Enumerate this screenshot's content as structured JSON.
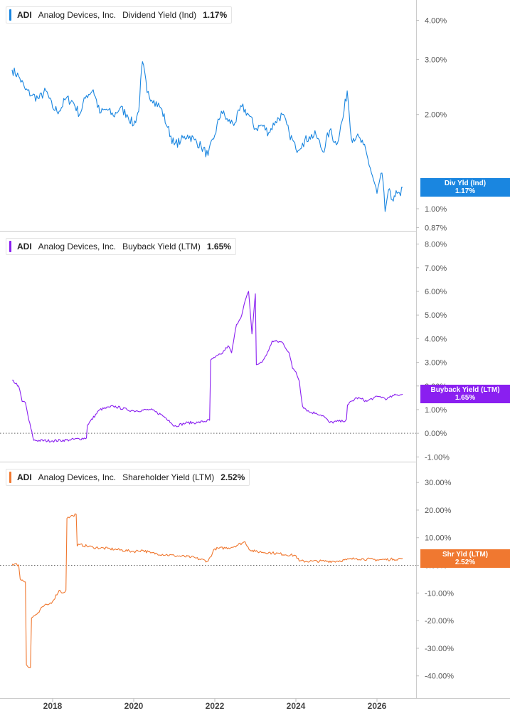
{
  "chart_data": [
    {
      "type": "line",
      "ticker": "ADI",
      "company": "Analog Devices, Inc.",
      "metric": "Dividend Yield (Ind)",
      "current": "1.17%",
      "tag_label": "Div Yld (Ind)",
      "color": "#1a86e0",
      "scale": "log",
      "ylim": [
        0.85,
        4.5
      ],
      "y_ticks": [
        {
          "v": 4.0,
          "label": "4.00%"
        },
        {
          "v": 3.0,
          "label": "3.00%"
        },
        {
          "v": 2.0,
          "label": "2.00%"
        },
        {
          "v": 1.0,
          "label": "1.00%"
        },
        {
          "v": 0.87,
          "label": "0.87%"
        }
      ],
      "series": [
        {
          "x": [
            "2017-01-01",
            "2017-03-01",
            "2017-05-01",
            "2017-07-01",
            "2017-09-01",
            "2017-11-01",
            "2018-01-01",
            "2018-03-01",
            "2018-05-01",
            "2018-07-01",
            "2018-09-01",
            "2018-11-01",
            "2019-01-01",
            "2019-03-01",
            "2019-05-01",
            "2019-07-01",
            "2019-09-01",
            "2019-11-01",
            "2020-01-01",
            "2020-02-15",
            "2020-03-20",
            "2020-05-01",
            "2020-07-01",
            "2020-09-01",
            "2020-11-01",
            "2021-01-01",
            "2021-03-01",
            "2021-05-01",
            "2021-07-01",
            "2021-09-01",
            "2021-11-01",
            "2022-01-01",
            "2022-03-01",
            "2022-05-01",
            "2022-07-01",
            "2022-09-01",
            "2022-11-01",
            "2023-01-01",
            "2023-03-01",
            "2023-05-01",
            "2023-07-01",
            "2023-09-01",
            "2023-11-01",
            "2024-01-01",
            "2024-03-01",
            "2024-05-01",
            "2024-07-01",
            "2024-09-01",
            "2024-11-01",
            "2025-01-01",
            "2025-03-01",
            "2025-04-08",
            "2025-05-15",
            "2025-07-01",
            "2025-09-01",
            "2025-11-01",
            "2026-01-01",
            "2026-02-15",
            "2026-03-15",
            "2026-04-15",
            "2026-05-10",
            "2026-06-05",
            "2026-07-01",
            "2026-08-01",
            "2026-08-20"
          ],
          "y": [
            2.78,
            2.65,
            2.4,
            2.3,
            2.25,
            2.38,
            2.1,
            2.05,
            2.25,
            2.2,
            2.0,
            2.3,
            2.4,
            2.02,
            2.08,
            1.98,
            2.1,
            2.0,
            1.85,
            2.05,
            2.95,
            2.35,
            2.22,
            2.1,
            1.82,
            1.6,
            1.65,
            1.72,
            1.66,
            1.58,
            1.48,
            1.72,
            2.05,
            1.9,
            1.88,
            2.12,
            2.0,
            1.8,
            1.85,
            1.75,
            1.9,
            2.0,
            1.75,
            1.55,
            1.62,
            1.7,
            1.72,
            1.52,
            1.78,
            1.6,
            1.95,
            2.38,
            1.68,
            1.7,
            1.6,
            1.35,
            1.12,
            1.3,
            0.98,
            1.15,
            1.07,
            1.1,
            1.12,
            1.1,
            1.17
          ]
        }
      ],
      "x_ticks": [
        "2018",
        "2020",
        "2022",
        "2024",
        "2026"
      ]
    },
    {
      "type": "line",
      "ticker": "ADI",
      "company": "Analog Devices, Inc.",
      "metric": "Buyback Yield (LTM)",
      "current": "1.65%",
      "tag_label": "Buyback Yield (LTM)",
      "color": "#8a1ff0",
      "ylim": [
        -1.2,
        8.5
      ],
      "y_ticks": [
        {
          "v": 8,
          "label": "8.00%"
        },
        {
          "v": 7,
          "label": "7.00%"
        },
        {
          "v": 6,
          "label": "6.00%"
        },
        {
          "v": 5,
          "label": "5.00%"
        },
        {
          "v": 4,
          "label": "4.00%"
        },
        {
          "v": 3,
          "label": "3.00%"
        },
        {
          "v": 2,
          "label": "2.00%"
        },
        {
          "v": 1,
          "label": "1.00%"
        },
        {
          "v": 0,
          "label": "0.00%"
        },
        {
          "v": -1,
          "label": "-1.00%"
        }
      ],
      "series": [
        {
          "x": [
            "2017-01-01",
            "2017-03-01",
            "2017-04-01",
            "2017-05-01",
            "2017-06-01",
            "2017-07-15",
            "2018-01-01",
            "2018-06-01",
            "2018-11-01",
            "2018-11-10",
            "2019-03-01",
            "2019-06-01",
            "2019-07-01",
            "2019-11-01",
            "2020-01-01",
            "2020-06-01",
            "2020-09-01",
            "2020-11-15",
            "2021-01-01",
            "2021-05-01",
            "2021-08-01",
            "2021-11-15",
            "2021-11-25",
            "2022-01-01",
            "2022-03-01",
            "2022-05-01",
            "2022-06-01",
            "2022-07-15",
            "2022-09-01",
            "2022-10-01",
            "2022-11-01",
            "2022-12-01",
            "2023-01-01",
            "2023-01-10",
            "2023-03-01",
            "2023-05-01",
            "2023-06-01",
            "2023-09-01",
            "2023-11-01",
            "2023-12-01",
            "2024-01-01",
            "2024-02-01",
            "2024-03-01",
            "2024-05-01",
            "2024-07-01",
            "2024-09-01",
            "2024-11-01",
            "2025-01-01",
            "2025-03-01",
            "2025-04-01",
            "2025-04-10",
            "2025-07-01",
            "2025-08-15",
            "2025-10-01",
            "2025-12-01",
            "2026-02-01",
            "2026-04-01",
            "2026-06-01",
            "2026-08-20"
          ],
          "y": [
            2.25,
            2.0,
            1.35,
            1.3,
            0.55,
            -0.3,
            -0.32,
            -0.28,
            -0.2,
            0.35,
            1.0,
            1.1,
            1.15,
            1.0,
            0.95,
            1.0,
            0.8,
            0.55,
            0.3,
            0.45,
            0.45,
            0.55,
            3.1,
            3.2,
            3.35,
            3.7,
            3.4,
            4.6,
            5.0,
            5.6,
            6.0,
            4.2,
            5.9,
            2.9,
            3.0,
            3.5,
            3.9,
            3.85,
            3.4,
            2.75,
            2.6,
            2.2,
            1.15,
            0.9,
            0.85,
            0.75,
            0.45,
            0.5,
            0.5,
            0.6,
            1.2,
            1.5,
            1.45,
            1.35,
            1.5,
            1.55,
            1.45,
            1.6,
            1.65
          ]
        }
      ],
      "x_ticks": [
        "2018",
        "2020",
        "2022",
        "2024",
        "2026"
      ]
    },
    {
      "type": "line",
      "ticker": "ADI",
      "company": "Analog Devices, Inc.",
      "metric": "Shareholder Yield (LTM)",
      "current": "2.52%",
      "tag_label": "Shr Yld (LTM)",
      "color": "#f07830",
      "ylim": [
        -46,
        37
      ],
      "y_ticks": [
        {
          "v": 30,
          "label": "30.00%"
        },
        {
          "v": 20,
          "label": "20.00%"
        },
        {
          "v": 10,
          "label": "10.00%"
        },
        {
          "v": 0,
          "label": "0.00%"
        },
        {
          "v": -10,
          "label": "-10.00%"
        },
        {
          "v": -20,
          "label": "-20.00%"
        },
        {
          "v": -30,
          "label": "-30.00%"
        },
        {
          "v": -40,
          "label": "-40.00%"
        }
      ],
      "series": [
        {
          "x": [
            "2017-01-01",
            "2017-03-01",
            "2017-03-15",
            "2017-05-01",
            "2017-05-10",
            "2017-06-15",
            "2017-06-25",
            "2017-09-01",
            "2017-10-01",
            "2017-12-01",
            "2018-01-01",
            "2018-03-01",
            "2018-04-01",
            "2018-05-01",
            "2018-05-10",
            "2018-07-01",
            "2018-08-01",
            "2018-08-10",
            "2018-09-01",
            "2019-01-01",
            "2019-06-01",
            "2020-01-01",
            "2020-03-20",
            "2020-06-01",
            "2021-01-01",
            "2021-06-01",
            "2021-11-01",
            "2022-01-01",
            "2022-06-01",
            "2022-10-01",
            "2022-11-15",
            "2023-01-01",
            "2023-06-01",
            "2024-01-01",
            "2024-02-01",
            "2024-06-01",
            "2025-01-01",
            "2025-04-01",
            "2025-07-01",
            "2026-01-01",
            "2026-06-01",
            "2026-08-20"
          ],
          "y": [
            0.5,
            0.2,
            -5.0,
            -6.0,
            -36.0,
            -37.0,
            -19.0,
            -17.0,
            -15.0,
            -14.0,
            -13.0,
            -9.0,
            -10.0,
            -9.0,
            17.0,
            18.0,
            18.5,
            7.0,
            7.5,
            6.5,
            6.0,
            5.0,
            5.5,
            4.5,
            3.5,
            3.0,
            1.5,
            6.0,
            6.5,
            8.5,
            5.5,
            5.0,
            4.5,
            3.5,
            1.5,
            1.5,
            1.5,
            2.0,
            2.5,
            2.0,
            2.2,
            2.52
          ]
        }
      ],
      "x_ticks": [
        "2018",
        "2020",
        "2022",
        "2024",
        "2026"
      ]
    }
  ]
}
